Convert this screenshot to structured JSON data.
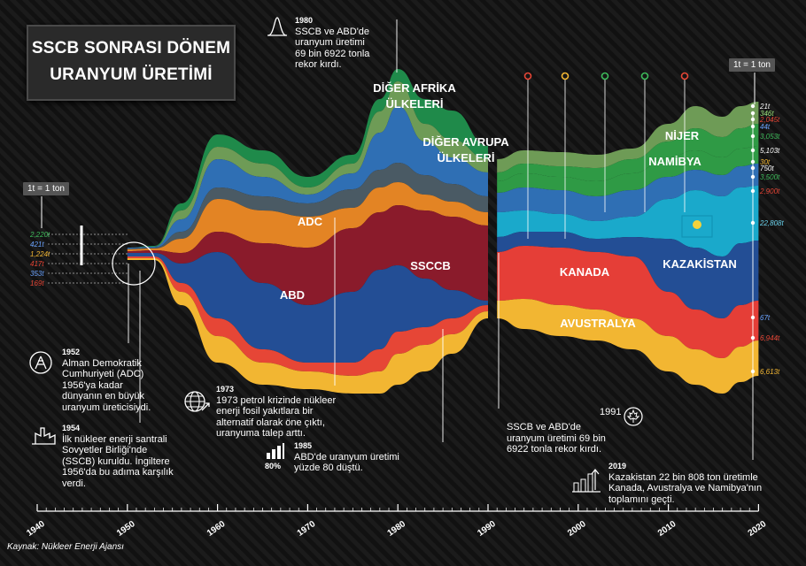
{
  "title_line1": "SSCB SONRASI DÖNEM",
  "title_line2": "URANYUM ÜRETİMİ",
  "scale_left": "1t = 1 ton",
  "scale_right": "1t = 1 ton",
  "source": "Kaynak: Nükleer Enerji Ajansı",
  "colors": {
    "abd": "#e64636",
    "sscb": "#8a1b2b",
    "adc": "#e38424",
    "blue": "#234e95",
    "other_europe": "#2f6fb4",
    "other_africa": "#1f8a4a",
    "kazakhstan": "#1aa9cb",
    "namibia": "#2f9a45",
    "niger": "#6e9b56",
    "canada": "#e53e37",
    "australia": "#f2b632",
    "gray": "#4a5a64"
  },
  "annotations": {
    "a1952_year": "1952",
    "a1952_text": [
      "Alman Demokratik",
      "Cumhuriyeti (ADC)",
      "1956'ya kadar",
      "dünyanın en büyük",
      "uranyum üreticisiydi."
    ],
    "a1954_year": "1954",
    "a1954_text": [
      "İlk nükleer enerji santrali",
      "Sovyetler Birliği'nde",
      "(SSCB) kuruldu. İngiltere",
      "1956'da bu adıma karşılık",
      "verdi."
    ],
    "a1973_year": "1973",
    "a1973_text": [
      "1973 petrol krizinde nükleer",
      "enerji fosil yakıtlara bir",
      "alternatif olarak öne çıktı,",
      "uranyuma talep arttı."
    ],
    "a1985_year": "1985",
    "a1985_badge": "80%",
    "a1985_text": [
      "ABD'de uranyum üretimi",
      "yüzde 80 düştü."
    ],
    "a1980_year": "1980",
    "a1980_text": [
      "SSCB ve ABD'de",
      "uranyum üretimi",
      "69 bin 6922 tonla",
      "rekor kırdı."
    ],
    "a1991_year": "1991",
    "a1991_text": [
      "SSCB ve ABD'de",
      "uranyum üretimi 69 bin",
      "6922 tonla rekor kırdı."
    ],
    "a2019_year": "2019",
    "a2019_text": [
      "Kazakistan 22 bin 808 ton üretimle",
      "Kanada, Avustralya ve Namibya'nın",
      "toplamını geçti."
    ]
  },
  "chart_data": {
    "type": "area",
    "stacked": true,
    "xlim": [
      1940,
      2020
    ],
    "x_ticks": [
      "1940",
      "1950",
      "1960",
      "1970",
      "1980",
      "1990",
      "2000",
      "2010",
      "2020"
    ],
    "region_labels": [
      "DİĞER AFRİKA",
      "ÜLKELERİ",
      "DİĞER AVRUPA",
      "ÜLKELERİ",
      "ADC",
      "SSCCB",
      "ABD",
      "KANADA",
      "AVUSTRALYA",
      "KAZAKİSTAN",
      "NAMİBYA",
      "NİJER"
    ],
    "left_values_1950": [
      "2,220t",
      "421t",
      "1,224t",
      "417t",
      "353t",
      "169t"
    ],
    "right_values_2020": [
      "21t",
      "346t",
      "2,045t",
      "44t",
      "3,053t",
      "5,103t",
      "30t",
      "750t",
      "3,500t",
      "2,900t",
      "22,808t",
      "67t",
      "6,944t",
      "6,613t"
    ]
  }
}
